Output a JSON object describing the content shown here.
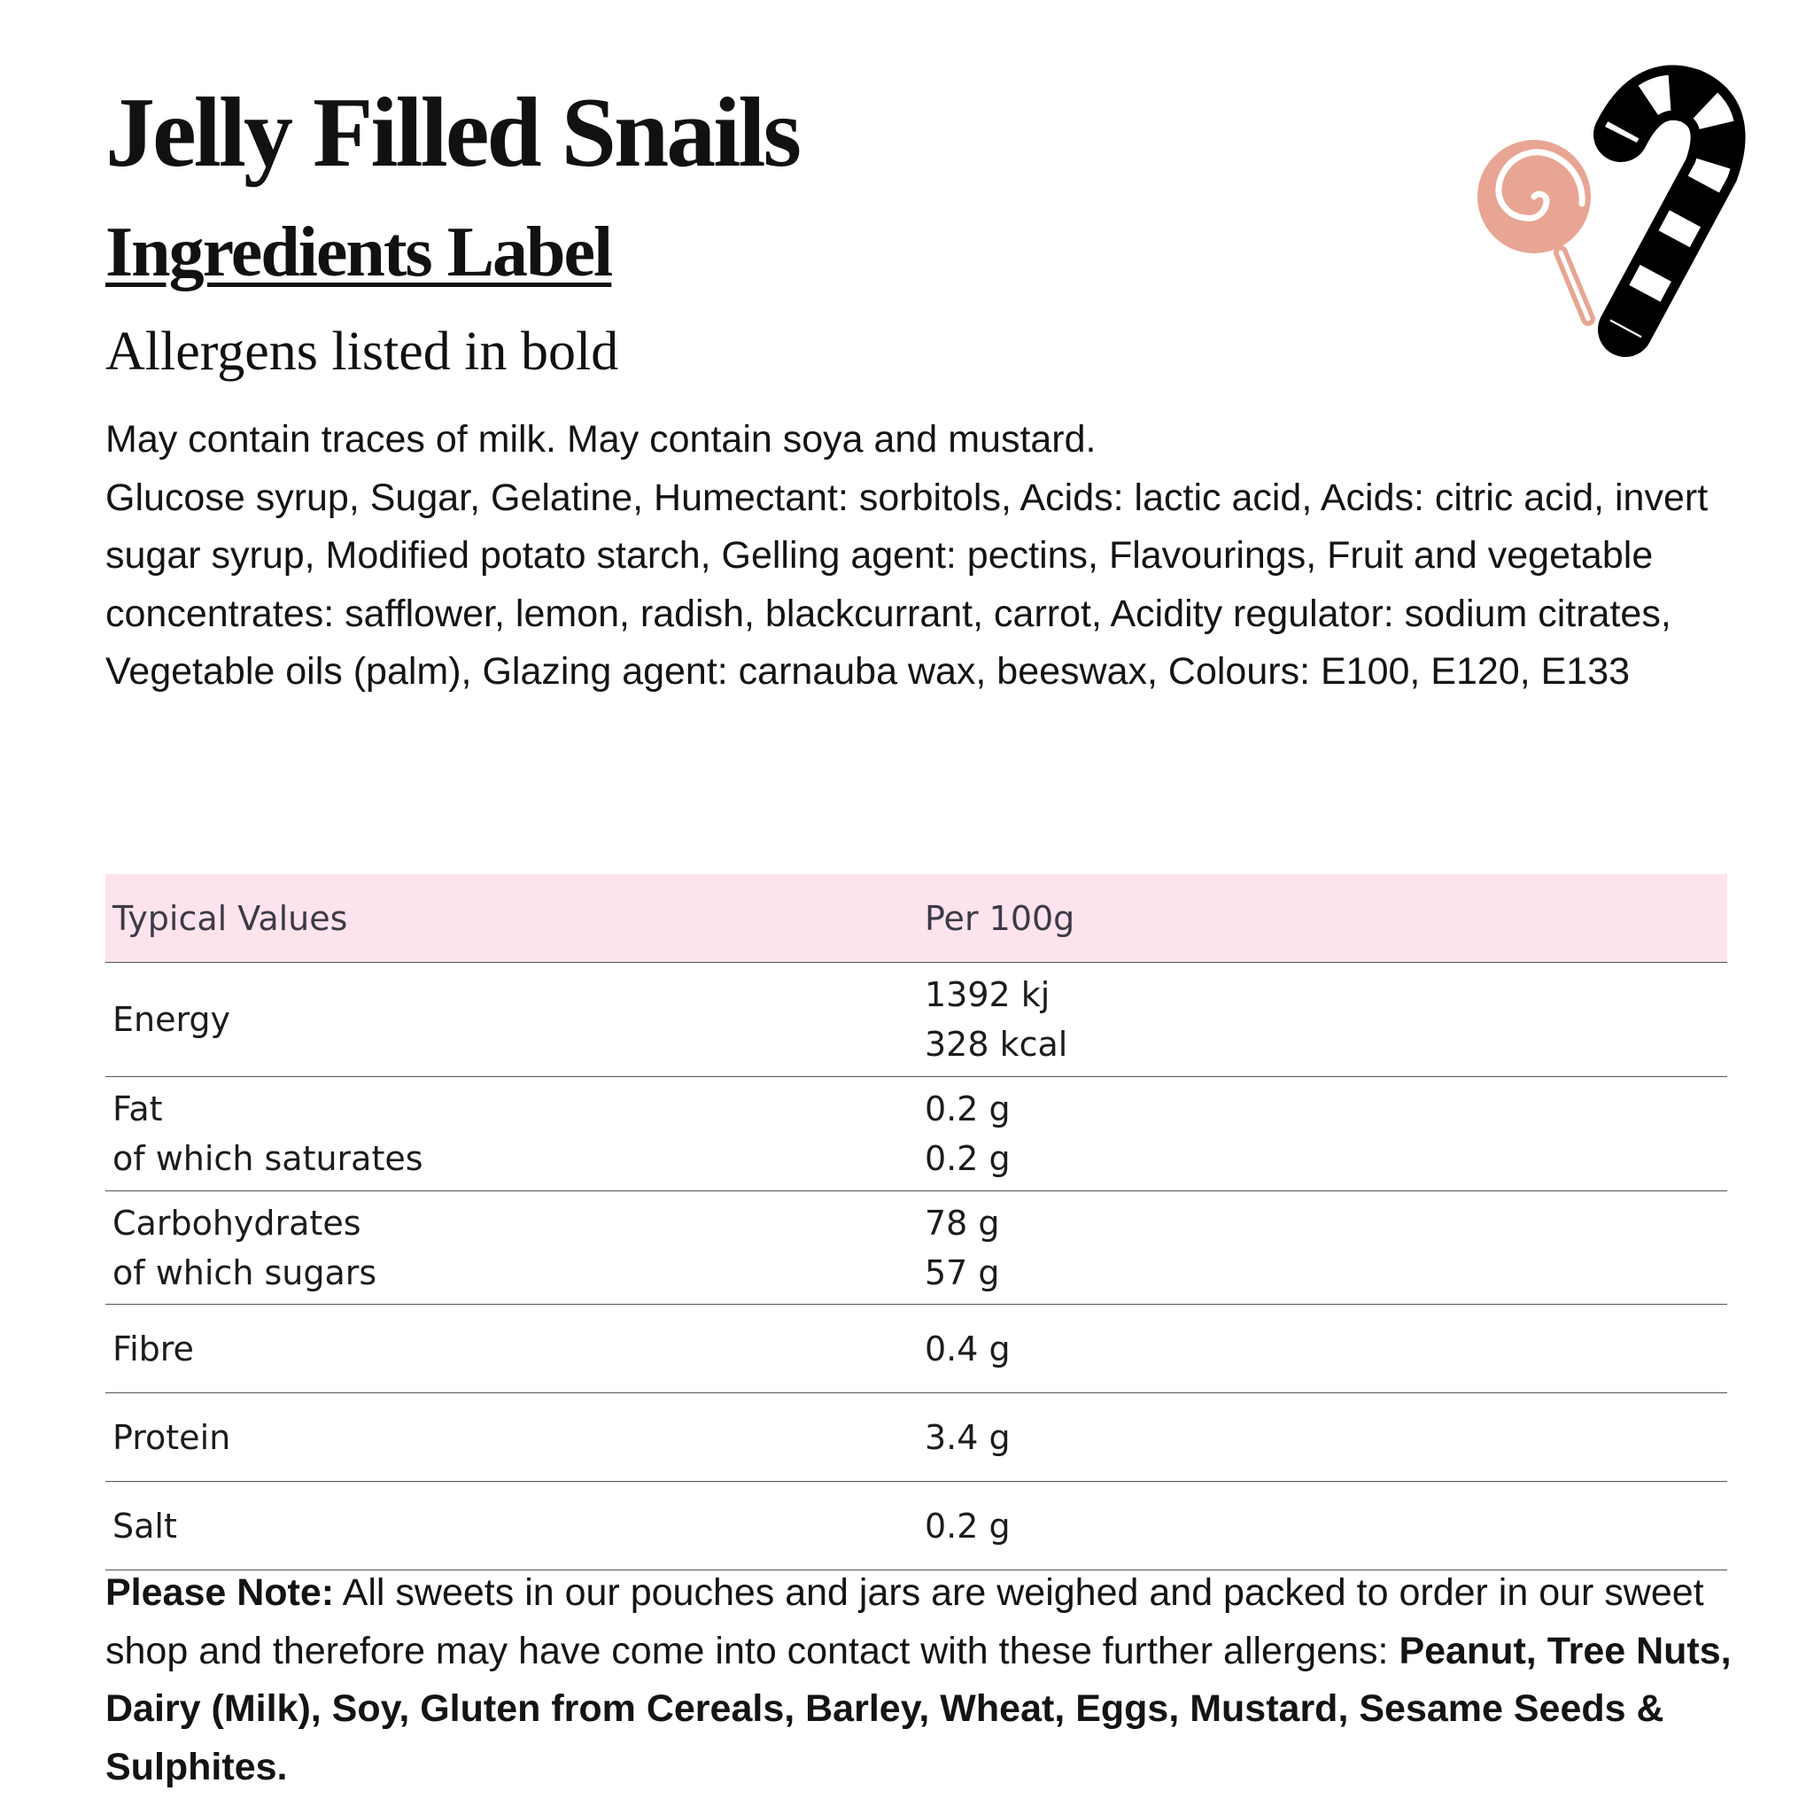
{
  "header": {
    "title": "Jelly Filled Snails",
    "subtitle": "Ingredients Label",
    "allergen_heading": "Allergens listed in bold"
  },
  "icons": {
    "lollipop": "lollipop-icon",
    "candy_cane": "candy-cane-icon",
    "lollipop_color": "#e8a593"
  },
  "ingredients": {
    "trace_warning": "May contain traces of milk. May contain soya and mustard.",
    "list": "Glucose syrup, Sugar, Gelatine, Humectant: sorbitols, Acids: lactic acid, Acids: citric acid, invert sugar syrup, Modified potato starch, Gelling agent: pectins, Flavourings, Fruit and vegetable concentrates: safflower, lemon, radish, blackcurrant, carrot, Acidity regulator: sodium citrates, Vegetable oils (palm), Glazing agent: carnauba wax, beeswax, Colours: E100, E120, E133"
  },
  "nutrition": {
    "header_color": "#fde3ec",
    "headers": [
      "Typical Values",
      "Per 100g"
    ],
    "rows": [
      {
        "label": [
          "Energy"
        ],
        "value": [
          "1392 kj",
          "328 kcal"
        ]
      },
      {
        "label": [
          "Fat",
          "of which saturates"
        ],
        "value": [
          "0.2 g",
          "0.2 g"
        ]
      },
      {
        "label": [
          "Carbohydrates",
          "of which sugars"
        ],
        "value": [
          "78 g",
          "57 g"
        ]
      },
      {
        "label": [
          "Fibre"
        ],
        "value": [
          "0.4 g"
        ]
      },
      {
        "label": [
          "Protein"
        ],
        "value": [
          "3.4 g"
        ]
      },
      {
        "label": [
          "Salt"
        ],
        "value": [
          "0.2 g"
        ]
      }
    ]
  },
  "note": {
    "label": "Please Note:",
    "text": " All sweets in our pouches and jars are weighed and packed to order in our sweet shop and therefore may have come into contact with these further allergens: ",
    "allergens": "Peanut, Tree Nuts, Dairy (Milk), Soy, Gluten from Cereals, Barley, Wheat, Eggs, Mustard, Sesame Seeds & Sulphites."
  }
}
